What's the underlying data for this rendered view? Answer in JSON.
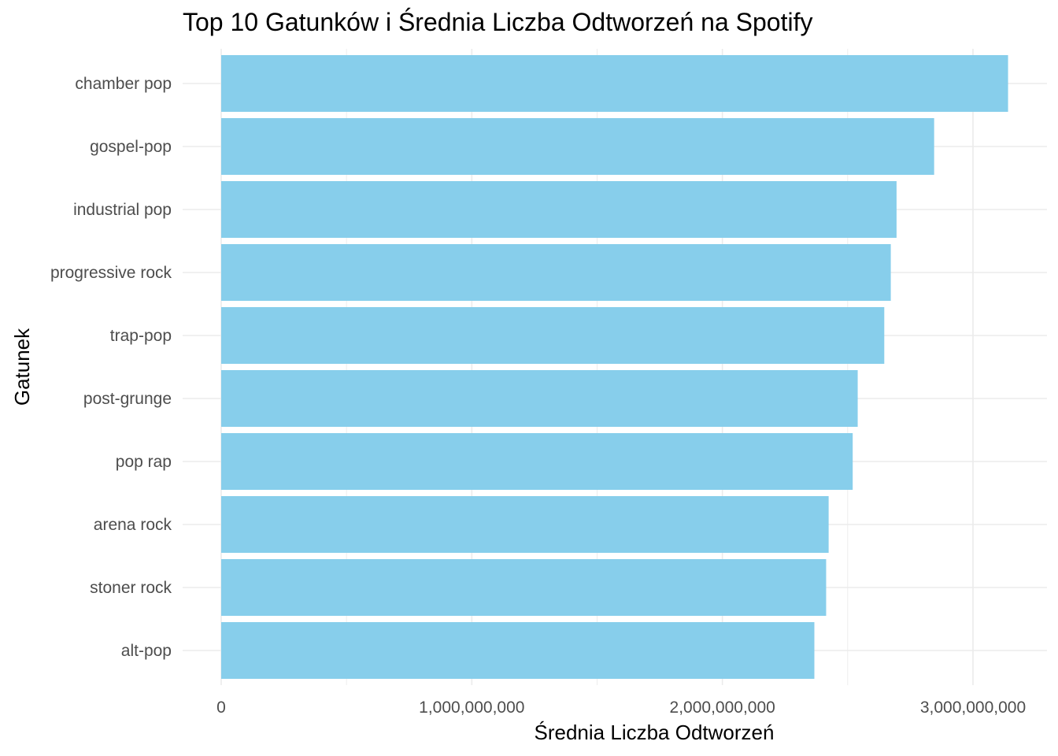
{
  "chart_data": {
    "type": "bar",
    "orientation": "horizontal",
    "title": "Top 10 Gatunków i Średnia Liczba Odtworzeń na Spotify",
    "xlabel": "Średnia Liczba Odtworzeń",
    "ylabel": "Gatunek",
    "categories": [
      "chamber pop",
      "gospel-pop",
      "industrial pop",
      "progressive rock",
      "trap-pop",
      "post-grunge",
      "pop rap",
      "arena rock",
      "stoner rock",
      "alt-pop"
    ],
    "values": [
      3140000000,
      2845000000,
      2695000000,
      2672000000,
      2646000000,
      2540000000,
      2520000000,
      2424000000,
      2414000000,
      2367000000
    ],
    "xlim": [
      0,
      3300000000
    ],
    "x_ticks": [
      0,
      1000000000,
      2000000000,
      3000000000
    ],
    "x_tick_labels": [
      "0",
      "1,000,000,000",
      "2,000,000,000",
      "3,000,000,000"
    ],
    "grid": true,
    "bar_color": "#87CEEB",
    "grid_color": "#ebebeb"
  }
}
